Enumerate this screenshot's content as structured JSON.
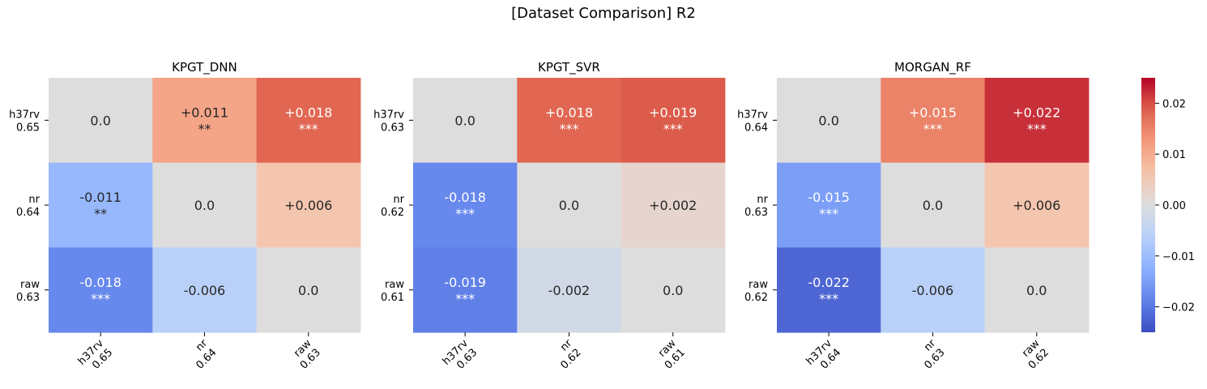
{
  "figure": {
    "suptitle": "[Dataset Comparison] R2"
  },
  "chart_data": [
    {
      "type": "heatmap",
      "title": "KPGT_DNN",
      "row_labels": [
        [
          "h37rv",
          "0.65"
        ],
        [
          "nr",
          "0.64"
        ],
        [
          "raw",
          "0.63"
        ]
      ],
      "col_labels": [
        [
          "h37rv",
          "0.65"
        ],
        [
          "nr",
          "0.64"
        ],
        [
          "raw",
          "0.63"
        ]
      ],
      "values": [
        [
          0.0,
          0.011,
          0.018
        ],
        [
          -0.011,
          0.0,
          0.006
        ],
        [
          -0.018,
          -0.006,
          0.0
        ]
      ],
      "cell_text": [
        [
          "0.0",
          "+0.011\n**",
          "+0.018\n***"
        ],
        [
          "-0.011\n**",
          "0.0",
          "+0.006"
        ],
        [
          "-0.018\n***",
          "-0.006",
          "0.0"
        ]
      ]
    },
    {
      "type": "heatmap",
      "title": "KPGT_SVR",
      "row_labels": [
        [
          "h37rv",
          "0.63"
        ],
        [
          "nr",
          "0.62"
        ],
        [
          "raw",
          "0.61"
        ]
      ],
      "col_labels": [
        [
          "h37rv",
          "0.63"
        ],
        [
          "nr",
          "0.62"
        ],
        [
          "raw",
          "0.61"
        ]
      ],
      "values": [
        [
          0.0,
          0.018,
          0.019
        ],
        [
          -0.018,
          0.0,
          0.002
        ],
        [
          -0.019,
          -0.002,
          0.0
        ]
      ],
      "cell_text": [
        [
          "0.0",
          "+0.018\n***",
          "+0.019\n***"
        ],
        [
          "-0.018\n***",
          "0.0",
          "+0.002"
        ],
        [
          "-0.019\n***",
          "-0.002",
          "0.0"
        ]
      ]
    },
    {
      "type": "heatmap",
      "title": "MORGAN_RF",
      "row_labels": [
        [
          "h37rv",
          "0.64"
        ],
        [
          "nr",
          "0.63"
        ],
        [
          "raw",
          "0.62"
        ]
      ],
      "col_labels": [
        [
          "h37rv",
          "0.64"
        ],
        [
          "nr",
          "0.63"
        ],
        [
          "raw",
          "0.62"
        ]
      ],
      "values": [
        [
          0.0,
          0.015,
          0.022
        ],
        [
          -0.015,
          0.0,
          0.006
        ],
        [
          -0.022,
          -0.006,
          0.0
        ]
      ],
      "cell_text": [
        [
          "0.0",
          "+0.015\n***",
          "+0.022\n***"
        ],
        [
          "-0.015\n***",
          "0.0",
          "+0.006"
        ],
        [
          "-0.022\n***",
          "-0.006",
          "0.0"
        ]
      ]
    }
  ],
  "colorbar": {
    "colormap": "coolwarm",
    "vmin": -0.025,
    "vmax": 0.025,
    "ticks": [
      -0.02,
      -0.01,
      0.0,
      0.01,
      0.02
    ],
    "tick_labels": [
      "−0.02",
      "−0.01",
      "0.00",
      "0.01",
      "0.02"
    ]
  }
}
